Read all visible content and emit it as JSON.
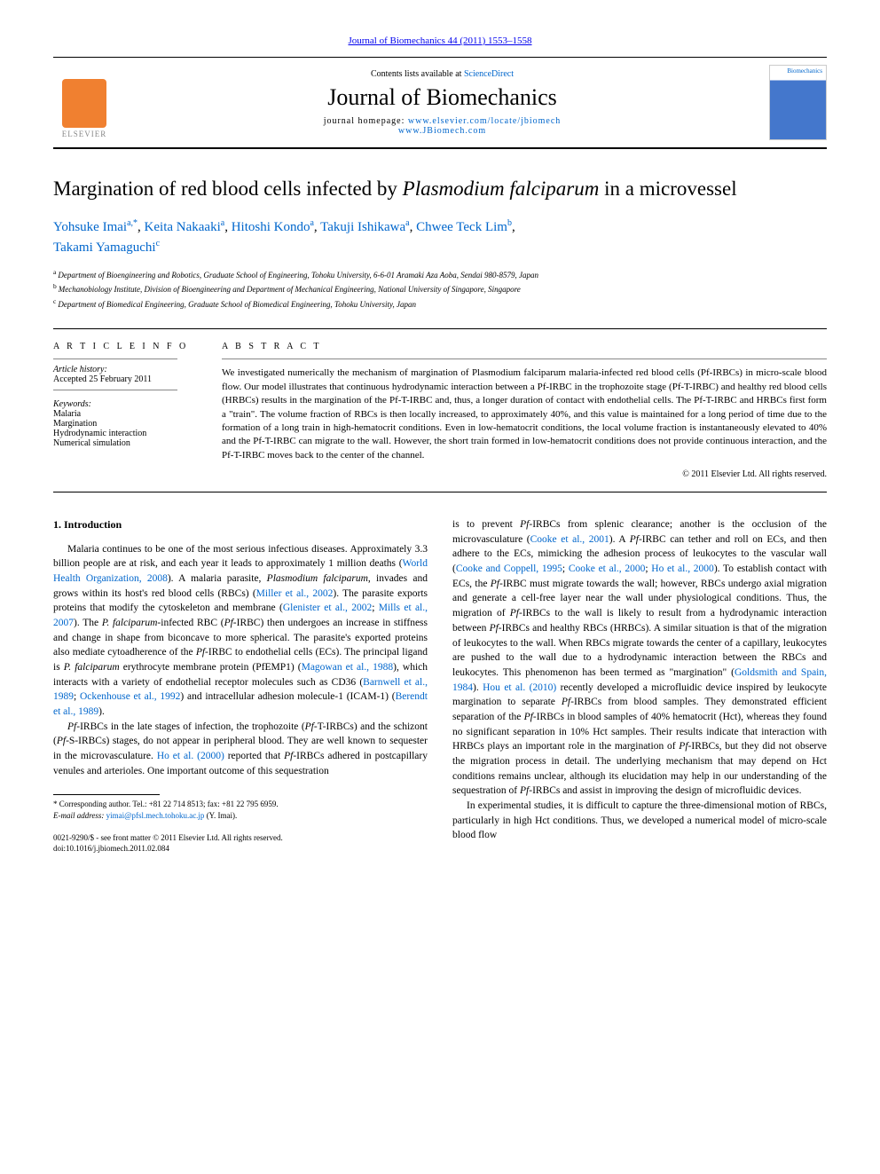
{
  "top_link": "Journal of Biomechanics 44 (2011) 1553–1558",
  "header": {
    "contents_prefix": "Contents lists available at ",
    "contents_link": "ScienceDirect",
    "journal_title": "Journal of Biomechanics",
    "homepage_prefix": "journal homepage: ",
    "homepage_url1": "www.elsevier.com/locate/jbiomech",
    "homepage_url2": "www.JBiomech.com",
    "elsevier_label": "ELSEVIER",
    "cover_label": "Biomechanics"
  },
  "title_pre": "Margination of red blood cells infected by ",
  "title_em": "Plasmodium falciparum",
  "title_post": " in a microvessel",
  "authors": {
    "a1_name": "Yohsuke Imai",
    "a1_sup": "a,",
    "a1_star": "*",
    "a2_name": "Keita Nakaaki",
    "a2_sup": "a",
    "a3_name": "Hitoshi Kondo",
    "a3_sup": "a",
    "a4_name": "Takuji Ishikawa",
    "a4_sup": "a",
    "a5_name": "Chwee Teck Lim",
    "a5_sup": "b",
    "a6_name": "Takami Yamaguchi",
    "a6_sup": "c"
  },
  "affiliations": {
    "a": "Department of Bioengineering and Robotics, Graduate School of Engineering, Tohoku University, 6-6-01 Aramaki Aza Aoba, Sendai 980-8579, Japan",
    "b": "Mechanobiology Institute, Division of Bioengineering and Department of Mechanical Engineering, National University of Singapore, Singapore",
    "c": "Department of Biomedical Engineering, Graduate School of Biomedical Engineering, Tohoku University, Japan"
  },
  "article_info": {
    "heading": "A R T I C L E   I N F O",
    "history_label": "Article history:",
    "history_value": "Accepted 25 February 2011",
    "keywords_label": "Keywords:",
    "kw1": "Malaria",
    "kw2": "Margination",
    "kw3": "Hydrodynamic interaction",
    "kw4": "Numerical simulation"
  },
  "abstract": {
    "heading": "A B S T R A C T",
    "text": "We investigated numerically the mechanism of margination of Plasmodium falciparum malaria-infected red blood cells (Pf-IRBCs) in micro-scale blood flow. Our model illustrates that continuous hydrodynamic interaction between a Pf-IRBC in the trophozoite stage (Pf-T-IRBC) and healthy red blood cells (HRBCs) results in the margination of the Pf-T-IRBC and, thus, a longer duration of contact with endothelial cells. The Pf-T-IRBC and HRBCs first form a \"train\". The volume fraction of RBCs is then locally increased, to approximately 40%, and this value is maintained for a long period of time due to the formation of a long train in high-hematocrit conditions. Even in low-hematocrit conditions, the local volume fraction is instantaneously elevated to 40% and the Pf-T-IRBC can migrate to the wall. However, the short train formed in low-hematocrit conditions does not provide continuous interaction, and the Pf-T-IRBC moves back to the center of the channel.",
    "copyright": "© 2011 Elsevier Ltd. All rights reserved."
  },
  "body": {
    "section_heading": "1.  Introduction",
    "col1_p1a": "Malaria continues to be one of the most serious infectious diseases. Approximately 3.3 billion people are at risk, and each year it leads to approximately 1 million deaths (",
    "col1_l1": "World Health Organization, 2008",
    "col1_p1b": "). A malaria parasite, ",
    "col1_em1": "Plasmodium falciparum",
    "col1_p1c": ", invades and grows within its host's red blood cells (RBCs) (",
    "col1_l2": "Miller et al., 2002",
    "col1_p1d": "). The parasite exports proteins that modify the cytoskeleton and membrane (",
    "col1_l3": "Glenister et al., 2002",
    "col1_p1e": "; ",
    "col1_l4": "Mills et al., 2007",
    "col1_p1f": "). The ",
    "col1_em2": "P. falciparum",
    "col1_p1g": "-infected RBC (",
    "col1_em3": "Pf",
    "col1_p1h": "-IRBC) then undergoes an increase in stiffness and change in shape from biconcave to more spherical. The parasite's exported proteins also mediate cytoadherence of the ",
    "col1_em4": "Pf",
    "col1_p1i": "-IRBC to endothelial cells (ECs). The principal ligand is ",
    "col1_em5": "P. falciparum",
    "col1_p1j": " erythrocyte membrane protein (PfEMP1) (",
    "col1_l5": "Magowan et al., 1988",
    "col1_p1k": "), which interacts with a variety of endothelial receptor molecules such as CD36 (",
    "col1_l6": "Barnwell et al., 1989",
    "col1_p1l": "; ",
    "col1_l7": "Ockenhouse et al., 1992",
    "col1_p1m": ") and intracellular adhesion molecule-1 (ICAM-1) (",
    "col1_l8": "Berendt et al., 1989",
    "col1_p1n": ").",
    "col1_p2a": "",
    "col1_em6": "Pf",
    "col1_p2b": "-IRBCs in the late stages of infection, the trophozoite (",
    "col1_em7": "Pf",
    "col1_p2c": "-T-IRBCs) and the schizont (",
    "col1_em8": "Pf",
    "col1_p2d": "-S-IRBCs) stages, do not appear in peripheral blood. They are well known to sequester in the microvasculature. ",
    "col1_l9": "Ho et al. (2000)",
    "col1_p2e": " reported that ",
    "col1_em9": "Pf",
    "col1_p2f": "-IRBCs adhered in postcapillary venules and arterioles. One important outcome of this sequestration",
    "col2_p1a": "is to prevent ",
    "col2_em1": "Pf",
    "col2_p1b": "-IRBCs from splenic clearance; another is the occlusion of the microvasculature (",
    "col2_l1": "Cooke et al., 2001",
    "col2_p1c": "). A ",
    "col2_em2": "Pf",
    "col2_p1d": "-IRBC can tether and roll on ECs, and then adhere to the ECs, mimicking the adhesion process of leukocytes to the vascular wall (",
    "col2_l2": "Cooke and Coppell, 1995",
    "col2_p1e": "; ",
    "col2_l3": "Cooke et al., 2000",
    "col2_p1f": "; ",
    "col2_l4": "Ho et al., 2000",
    "col2_p1g": "). To establish contact with ECs, the ",
    "col2_em3": "Pf",
    "col2_p1h": "-IRBC must migrate towards the wall; however, RBCs undergo axial migration and generate a cell-free layer near the wall under physiological conditions. Thus, the migration of ",
    "col2_em4": "Pf",
    "col2_p1i": "-IRBCs to the wall is likely to result from a hydrodynamic interaction between ",
    "col2_em5": "Pf",
    "col2_p1j": "-IRBCs and healthy RBCs (HRBCs). A similar situation is that of the migration of leukocytes to the wall. When RBCs migrate towards the center of a capillary, leukocytes are pushed to the wall due to a hydrodynamic interaction between the RBCs and leukocytes. This phenomenon has been termed as \"margination\" (",
    "col2_l5": "Goldsmith and Spain, 1984",
    "col2_p1k": "). ",
    "col2_l6": "Hou et al. (2010)",
    "col2_p1l": " recently developed a microfluidic device inspired by leukocyte margination to separate ",
    "col2_em6": "Pf",
    "col2_p1m": "-IRBCs from blood samples. They demonstrated efficient separation of the ",
    "col2_em7": "Pf",
    "col2_p1n": "-IRBCs in blood samples of 40% hematocrit (Hct), whereas they found no significant separation in 10% Hct samples. Their results indicate that interaction with HRBCs plays an important role in the margination of ",
    "col2_em8": "Pf",
    "col2_p1o": "-IRBCs, but they did not observe the migration process in detail. The underlying mechanism that may depend on Hct conditions remains unclear, although its elucidation may help in our understanding of the sequestration of ",
    "col2_em9": "Pf",
    "col2_p1p": "-IRBCs and assist in improving the design of microfluidic devices.",
    "col2_p2": "In experimental studies, it is difficult to capture the three-dimensional motion of RBCs, particularly in high Hct conditions. Thus, we developed a numerical model of micro-scale blood flow"
  },
  "footnote": {
    "corr": "* Corresponding author. Tel.: +81 22 714 8513; fax: +81 22 795 6959.",
    "email_label": "E-mail address: ",
    "email": "yimai@pfsl.mech.tohoku.ac.jp",
    "email_suffix": " (Y. Imai)."
  },
  "bottom": {
    "line1": "0021-9290/$ - see front matter © 2011 Elsevier Ltd. All rights reserved.",
    "line2": "doi:10.1016/j.jbiomech.2011.02.084"
  },
  "colors": {
    "link": "#0066cc",
    "elsevier_orange": "#f08030",
    "text": "#000000",
    "bg": "#ffffff"
  }
}
